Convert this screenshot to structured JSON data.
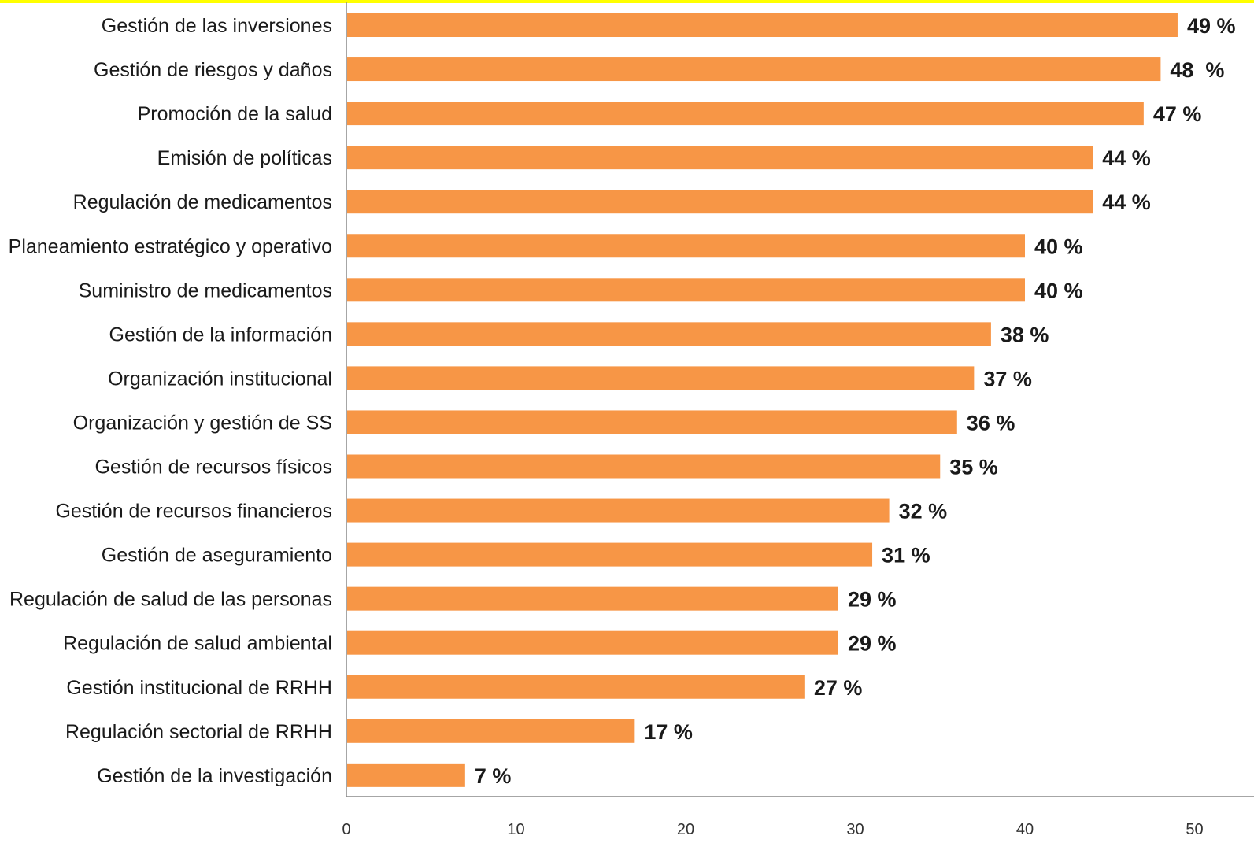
{
  "chart_data": {
    "type": "bar",
    "orientation": "horizontal",
    "categories": [
      "Gestión de las inversiones",
      "Gestión de riesgos y daños",
      "Promoción de la salud",
      "Emisión de políticas",
      "Regulación de medicamentos",
      "Planeamiento estratégico y operativo",
      "Suministro de medicamentos",
      "Gestión de la información",
      "Organización institucional",
      "Organización y gestión de SS",
      "Gestión de recursos físicos",
      "Gestión de recursos financieros",
      "Gestión de aseguramiento",
      "Regulación de salud de las personas",
      "Regulación de salud ambiental",
      "Gestión institucional de RRHH",
      "Regulación sectorial de RRHH",
      "Gestión de la investigación"
    ],
    "values": [
      49,
      48,
      47,
      44,
      44,
      40,
      40,
      38,
      37,
      36,
      35,
      32,
      31,
      29,
      29,
      27,
      17,
      7
    ],
    "data_labels": [
      "49 %",
      "48  %",
      "47 %",
      "44 %",
      "44 %",
      "40 %",
      "40 %",
      "38 %",
      "37 %",
      "36 %",
      "35 %",
      "32 %",
      "31 %",
      "29 %",
      "29 %",
      "27 %",
      "17 %",
      "7 %"
    ],
    "xlim": [
      0,
      50
    ],
    "x_ticks": [
      "0",
      "10",
      "20",
      "30",
      "40",
      "50"
    ],
    "title": "",
    "xlabel": "",
    "ylabel": "",
    "grid": false,
    "legend": "none",
    "colors": {
      "bar": "#f79646",
      "text": "#1a1a1a",
      "axis": "#888888",
      "top_border": "#ffff00"
    }
  }
}
